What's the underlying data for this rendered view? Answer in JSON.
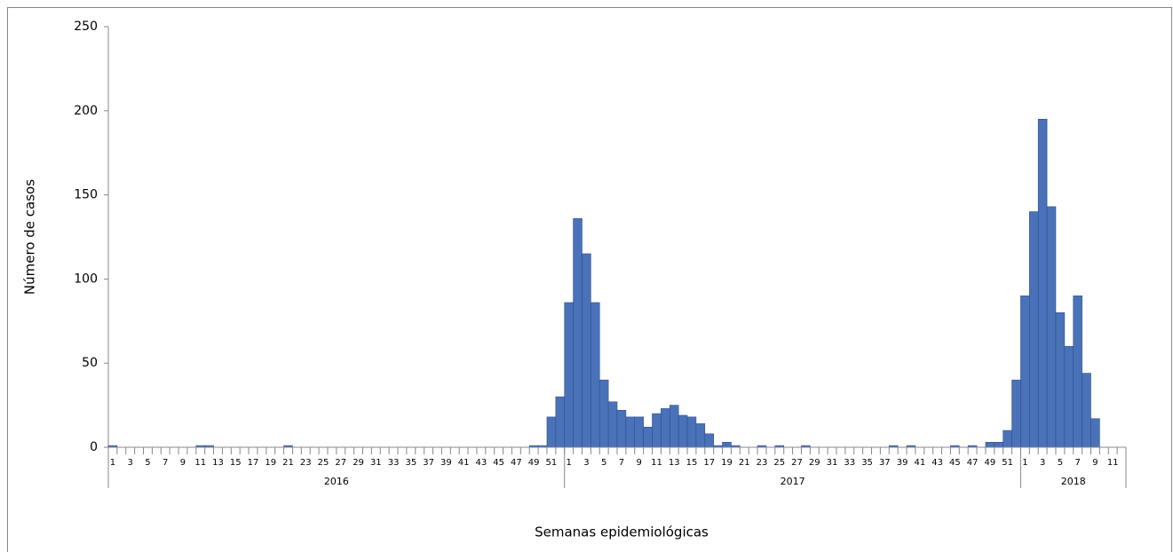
{
  "chart_data": {
    "type": "bar",
    "y_label": "Número de casos",
    "x_label": "Semanas epidemiológicas",
    "color": "#4a72b8",
    "edge_color": "#2f4f8a",
    "ylim": [
      0,
      250
    ],
    "yticks": [
      0,
      50,
      100,
      150,
      200,
      250
    ],
    "grid": false,
    "groups": [
      {
        "label": "2016",
        "categories": [
          "1",
          null,
          "3",
          null,
          "5",
          null,
          "7",
          null,
          "9",
          null,
          "11",
          null,
          "13",
          null,
          "15",
          null,
          "17",
          null,
          "19",
          null,
          "21",
          null,
          "23",
          null,
          "25",
          null,
          "27",
          null,
          "29",
          null,
          "31",
          null,
          "33",
          null,
          "35",
          null,
          "37",
          null,
          "39",
          null,
          "41",
          null,
          "43",
          null,
          "45",
          null,
          "47",
          null,
          "49",
          null,
          "51",
          null
        ]
      },
      {
        "label": "2017",
        "categories": [
          "1",
          null,
          "3",
          null,
          "5",
          null,
          "7",
          null,
          "9",
          null,
          "11",
          null,
          "13",
          null,
          "15",
          null,
          "17",
          null,
          "19",
          null,
          "21",
          null,
          "23",
          null,
          "25",
          null,
          "27",
          null,
          "29",
          null,
          "31",
          null,
          "33",
          null,
          "35",
          null,
          "37",
          null,
          "39",
          null,
          "41",
          null,
          "43",
          null,
          "45",
          null,
          "47",
          null,
          "49",
          null,
          "51",
          null
        ]
      },
      {
        "label": "2018",
        "categories": [
          "1",
          null,
          "3",
          null,
          "5",
          null,
          "7",
          null,
          "9",
          null,
          "11",
          null
        ]
      }
    ],
    "values": [
      1,
      0,
      0,
      0,
      0,
      0,
      0,
      0,
      0,
      0,
      1,
      1,
      0,
      0,
      0,
      0,
      0,
      0,
      0,
      0,
      1,
      0,
      0,
      0,
      0,
      0,
      0,
      0,
      0,
      0,
      0,
      0,
      0,
      0,
      0,
      0,
      0,
      0,
      0,
      0,
      0,
      0,
      0,
      0,
      0,
      0,
      0,
      0,
      1,
      1,
      18,
      30,
      86,
      136,
      115,
      86,
      40,
      27,
      22,
      18,
      18,
      12,
      20,
      23,
      25,
      19,
      18,
      14,
      8,
      1,
      3,
      1,
      0,
      0,
      1,
      0,
      1,
      0,
      0,
      1,
      0,
      0,
      0,
      0,
      0,
      0,
      0,
      0,
      0,
      1,
      0,
      1,
      0,
      0,
      0,
      0,
      1,
      0,
      1,
      0,
      3,
      3,
      10,
      40,
      90,
      140,
      195,
      143,
      80,
      60,
      90,
      44,
      17,
      0,
      0,
      0
    ]
  }
}
